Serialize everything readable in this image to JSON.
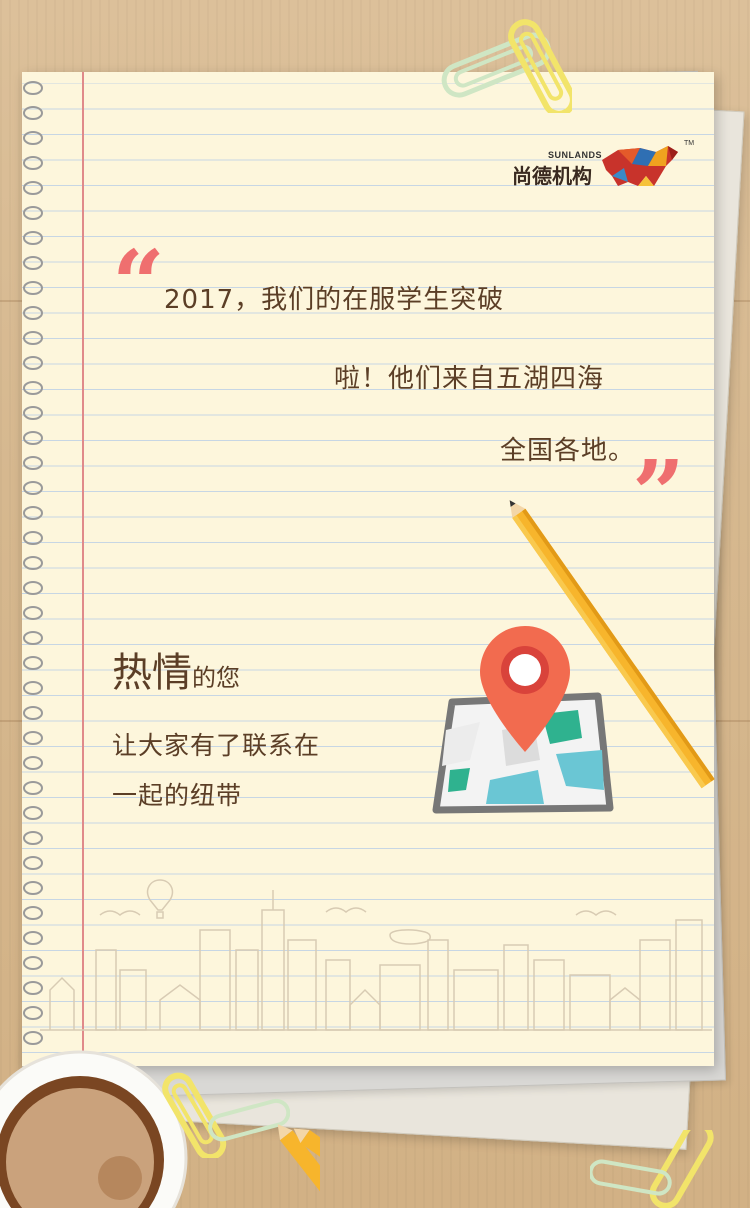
{
  "logo": {
    "english": "SUNLANDS",
    "chinese": "尚德机构",
    "trademark": "TM"
  },
  "quote": {
    "lines": [
      "2017，我们的在服学生突破",
      "啦！他们来自五湖四海",
      "全国各地。"
    ],
    "open_mark": "“",
    "close_mark": "”"
  },
  "message": {
    "big": "热情",
    "small": "的您",
    "line2": "让大家有了联系在",
    "line3": "一起的纽带"
  },
  "colors": {
    "accent": "#ef6f6f",
    "text": "#5b3e26",
    "paper": "#fdf6dc",
    "pin": "#f26b4f",
    "pencil": "#f7b52c"
  },
  "icons": {
    "map": "map-pin-icon",
    "logo_animal": "bull-icon",
    "skyline": "city-skyline-illustration"
  }
}
